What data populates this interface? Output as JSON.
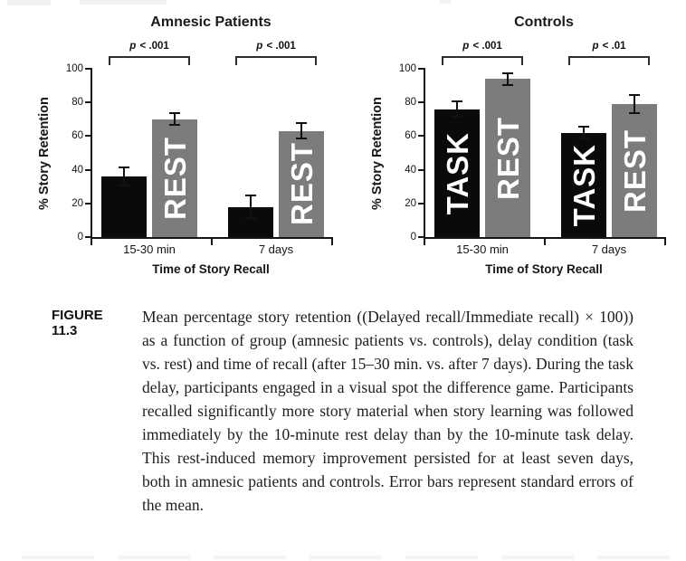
{
  "chart_data": [
    {
      "type": "bar",
      "title": "Amnesic Patients",
      "ylabel": "% Story Retention",
      "xlabel": "Time of Story Recall",
      "ylim": [
        0,
        100
      ],
      "yticks": [
        0,
        20,
        40,
        60,
        80,
        100
      ],
      "grid": false,
      "legend_position": "labels-inside-bars",
      "categories": [
        "15-30 min",
        "7 days"
      ],
      "series": [
        {
          "name": "TASK",
          "color": "#0a0a0a",
          "values": [
            36,
            18
          ],
          "stderr": [
            5,
            6
          ],
          "bar_labels": [
            "",
            ""
          ]
        },
        {
          "name": "REST",
          "color": "#7c7c7c",
          "values": [
            70,
            63
          ],
          "stderr": [
            3,
            4
          ],
          "bar_labels": [
            "REST",
            "REST"
          ]
        }
      ],
      "significance_labels": [
        "p < .001",
        "p < .001"
      ]
    },
    {
      "type": "bar",
      "title": "Controls",
      "ylabel": "% Story Retention",
      "xlabel": "Time of Story Recall",
      "ylim": [
        0,
        100
      ],
      "yticks": [
        0,
        20,
        40,
        60,
        80,
        100
      ],
      "grid": false,
      "legend_position": "labels-inside-bars",
      "categories": [
        "15-30 min",
        "7 days"
      ],
      "series": [
        {
          "name": "TASK",
          "color": "#0a0a0a",
          "values": [
            76,
            62
          ],
          "stderr": [
            4,
            3
          ],
          "bar_labels": [
            "TASK",
            "TASK"
          ]
        },
        {
          "name": "REST",
          "color": "#7c7c7c",
          "values": [
            94,
            79
          ],
          "stderr": [
            3,
            5
          ],
          "bar_labels": [
            "REST",
            "REST"
          ]
        }
      ],
      "significance_labels": [
        "p < .001",
        "p < .01"
      ]
    }
  ],
  "caption": {
    "label": "FIGURE 11.3",
    "text": "Mean percentage story retention ((Delayed recall/Immediate recall) × 100)) as a function of group (amnesic patients vs. controls), delay condition (task vs. rest) and time of recall (after 15–30 min. vs. after 7 days). During the task delay, participants engaged in a visual spot the difference game. Participants recalled significantly more story material when story learning was followed immediately by the 10-minute rest delay than by the 10-minute task delay. This rest-induced memory improvement persisted for at least seven days, both in amnesic patients and controls. Error bars represent standard errors of the mean."
  },
  "colors": {
    "task_bar": "#0a0a0a",
    "rest_bar": "#7c7c7c",
    "axis": "#161616",
    "bar_label_text": "#ffffff",
    "background": "#ffffff"
  }
}
